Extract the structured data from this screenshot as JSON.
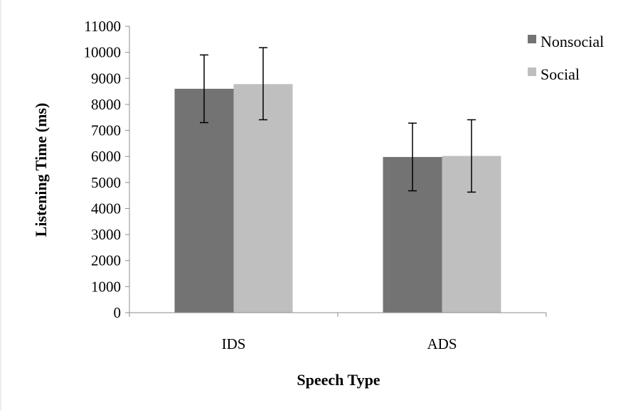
{
  "chart_data": {
    "type": "bar",
    "categories": [
      "IDS",
      "ADS"
    ],
    "series": [
      {
        "name": "Nonsocial",
        "color": "#737373",
        "values": [
          8600,
          5980
        ],
        "error_low": [
          7300,
          4680
        ],
        "error_high": [
          9900,
          7280
        ]
      },
      {
        "name": "Social",
        "color": "#bfbfbf",
        "values": [
          8780,
          6020
        ],
        "error_low": [
          7410,
          4630
        ],
        "error_high": [
          10180,
          7410
        ]
      }
    ],
    "title": "",
    "xlabel": "Speech Type",
    "ylabel": "Listening Time (ms)",
    "ylim": [
      0,
      11000
    ],
    "yticks": [
      "0",
      "1000",
      "2000",
      "3000",
      "4000",
      "5000",
      "6000",
      "7000",
      "8000",
      "9000",
      "10000",
      "11000"
    ],
    "grid": false,
    "legend_position": "right"
  }
}
